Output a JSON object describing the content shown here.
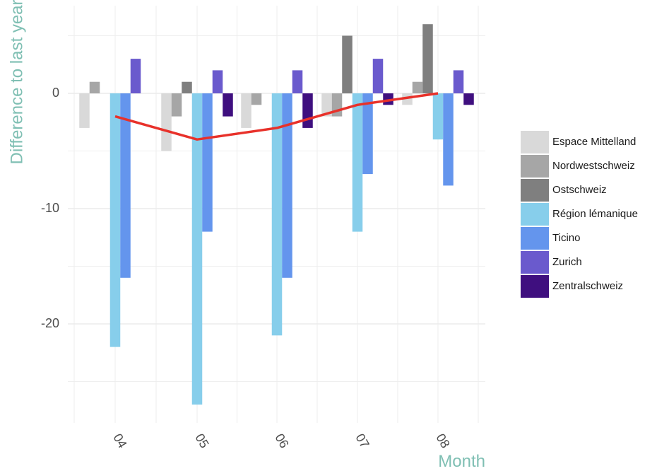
{
  "chart_data": {
    "type": "bar",
    "xlabel": "Month",
    "ylabel": "Difference to last year",
    "categories": [
      "04",
      "05",
      "06",
      "07",
      "08"
    ],
    "ylim": [
      -28,
      8
    ],
    "yticks": [
      0,
      -10,
      -20
    ],
    "grid": true,
    "legend_position": "right",
    "series": [
      {
        "name": "Espace Mittelland",
        "color": "#d9d9d9",
        "values": [
          -3,
          -5,
          -3,
          -2,
          -1
        ]
      },
      {
        "name": "Nordwestschweiz",
        "color": "#a6a6a6",
        "values": [
          1,
          -2,
          -1,
          -2,
          1
        ]
      },
      {
        "name": "Ostschweiz",
        "color": "#7f7f7f",
        "values": [
          0,
          1,
          0,
          5,
          6
        ]
      },
      {
        "name": "Région lémanique",
        "color": "#87ceeb",
        "values": [
          -22,
          -27,
          -21,
          -12,
          -4
        ]
      },
      {
        "name": "Ticino",
        "color": "#6495ed",
        "values": [
          -16,
          -12,
          -16,
          -7,
          -8
        ]
      },
      {
        "name": "Zurich",
        "color": "#6a5acd",
        "values": [
          3,
          2,
          2,
          3,
          2
        ]
      },
      {
        "name": "Zentralschweiz",
        "color": "#3f0f7f",
        "values": [
          0,
          -2,
          -3,
          -1,
          -1
        ]
      }
    ],
    "line": {
      "color": "#e8312a",
      "values": [
        -2,
        -4,
        -3,
        -1,
        0
      ]
    }
  }
}
